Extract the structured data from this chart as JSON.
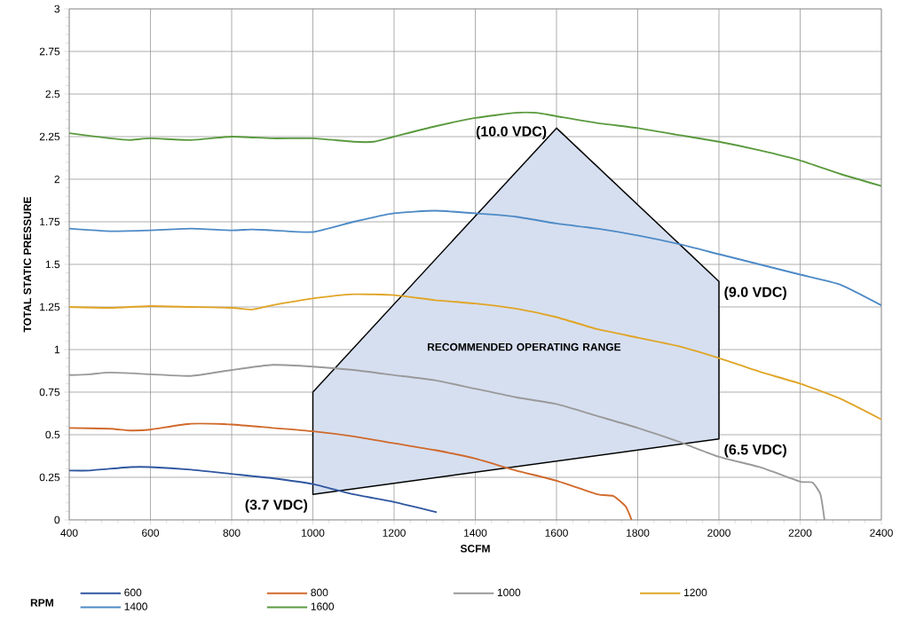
{
  "chart_data": {
    "type": "line",
    "xlabel": "SCFM",
    "ylabel": "TOTAL STATIC PRESSURE",
    "legend_title": "RPM",
    "xlim": [
      400,
      2400
    ],
    "ylim": [
      0,
      3
    ],
    "xticks": [
      400,
      600,
      800,
      1000,
      1200,
      1400,
      1600,
      1800,
      2000,
      2200,
      2400
    ],
    "yticks": [
      0,
      0.25,
      0.5,
      0.75,
      1,
      1.25,
      1.5,
      1.75,
      2,
      2.25,
      2.5,
      2.75,
      3
    ],
    "grid": true,
    "legend": "bottom",
    "marker": "none",
    "line_style": "solid",
    "series": [
      {
        "type": "area",
        "color": "#d6dff0",
        "x": [
          1000,
          1000,
          1600,
          2000,
          2000
        ],
        "values": [
          0.15,
          0.75,
          2.3,
          1.4,
          0.475
        ]
      },
      {
        "name": "600",
        "color": "#2f56a0",
        "x": [
          400,
          450,
          550,
          600,
          700,
          800,
          900,
          1000,
          1100,
          1200,
          1305
        ],
        "values": [
          0.29,
          0.29,
          0.31,
          0.31,
          0.295,
          0.27,
          0.245,
          0.21,
          0.15,
          0.105,
          0.045
        ]
      },
      {
        "name": "800",
        "color": "#d0692b",
        "x": [
          400,
          500,
          550,
          600,
          700,
          800,
          900,
          1000,
          1100,
          1200,
          1300,
          1400,
          1500,
          1600,
          1700,
          1740,
          1770,
          1785
        ],
        "values": [
          0.54,
          0.535,
          0.525,
          0.53,
          0.565,
          0.56,
          0.54,
          0.52,
          0.49,
          0.45,
          0.41,
          0.36,
          0.29,
          0.23,
          0.15,
          0.14,
          0.08,
          0.0
        ]
      },
      {
        "name": "1000",
        "color": "#999999",
        "x": [
          400,
          450,
          500,
          600,
          700,
          800,
          900,
          1000,
          1100,
          1200,
          1300,
          1400,
          1500,
          1600,
          1700,
          1800,
          1900,
          2000,
          2100,
          2200,
          2230,
          2250,
          2260
        ],
        "values": [
          0.85,
          0.855,
          0.865,
          0.855,
          0.845,
          0.88,
          0.91,
          0.9,
          0.88,
          0.85,
          0.82,
          0.77,
          0.72,
          0.68,
          0.61,
          0.54,
          0.46,
          0.37,
          0.31,
          0.225,
          0.22,
          0.15,
          0.0
        ]
      },
      {
        "name": "1200",
        "color": "#e0a526",
        "x": [
          400,
          500,
          600,
          700,
          800,
          850,
          900,
          1000,
          1100,
          1200,
          1300,
          1400,
          1500,
          1600,
          1700,
          1800,
          1900,
          2000,
          2100,
          2200,
          2300,
          2400
        ],
        "values": [
          1.25,
          1.245,
          1.255,
          1.25,
          1.245,
          1.235,
          1.26,
          1.3,
          1.325,
          1.32,
          1.29,
          1.27,
          1.24,
          1.19,
          1.12,
          1.07,
          1.02,
          0.95,
          0.87,
          0.8,
          0.71,
          0.59
        ]
      },
      {
        "name": "1400",
        "color": "#4d8ac6",
        "x": [
          400,
          500,
          600,
          700,
          800,
          850,
          900,
          1000,
          1100,
          1200,
          1300,
          1400,
          1500,
          1600,
          1700,
          1800,
          1900,
          2000,
          2100,
          2200,
          2300,
          2400
        ],
        "values": [
          1.71,
          1.695,
          1.7,
          1.71,
          1.7,
          1.705,
          1.7,
          1.69,
          1.75,
          1.8,
          1.815,
          1.8,
          1.78,
          1.74,
          1.71,
          1.67,
          1.62,
          1.56,
          1.5,
          1.44,
          1.38,
          1.26
        ]
      },
      {
        "name": "1600",
        "color": "#5a9a3e",
        "x": [
          400,
          500,
          550,
          600,
          700,
          800,
          900,
          1000,
          1100,
          1150,
          1200,
          1300,
          1400,
          1500,
          1550,
          1600,
          1700,
          1800,
          1900,
          2000,
          2100,
          2200,
          2300,
          2400
        ],
        "values": [
          2.27,
          2.24,
          2.23,
          2.24,
          2.23,
          2.25,
          2.24,
          2.24,
          2.22,
          2.22,
          2.25,
          2.31,
          2.36,
          2.39,
          2.39,
          2.37,
          2.33,
          2.3,
          2.26,
          2.22,
          2.17,
          2.11,
          2.03,
          1.96
        ]
      }
    ],
    "annotations": [
      {
        "text": "(10.0 VDC)",
        "x": 1600,
        "y": 2.3
      },
      {
        "text": "(9.0 VDC)",
        "x": 2000,
        "y": 1.4
      },
      {
        "text": "(6.5 VDC)",
        "x": 2000,
        "y": 0.475
      },
      {
        "text": "(3.7 VDC)",
        "x": 1000,
        "y": 0.15
      },
      "RECOMMENDED OPERATING RANGE"
    ]
  }
}
